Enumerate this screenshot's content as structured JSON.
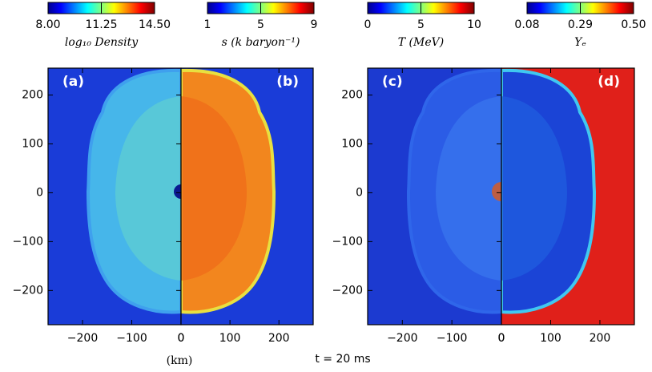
{
  "chart_data": [
    {
      "type": "heatmap",
      "label": "(a)",
      "colorbar": {
        "label": "log₁₀ Density",
        "lim": [
          8,
          14.5
        ],
        "ticks": [
          {
            "value": 8,
            "label": "8.00"
          },
          {
            "value": 11.25,
            "label": "11.25"
          },
          {
            "value": 14.5,
            "label": "14.50"
          }
        ]
      },
      "xlim": [
        -270,
        0
      ],
      "xticks": [
        {
          "value": -200,
          "label": "−200"
        },
        {
          "value": -100,
          "label": "−100"
        },
        0
      ],
      "ylim": [
        -270,
        255
      ],
      "yticks": [
        {
          "value": -200,
          "label": "−200"
        },
        {
          "value": -100,
          "label": "−100"
        },
        0,
        100,
        200
      ],
      "xlabel": "(km)"
    },
    {
      "type": "heatmap",
      "label": "(b)",
      "colorbar": {
        "label": "s (k baryon⁻¹)",
        "lim": [
          1,
          9
        ],
        "ticks": [
          1,
          5,
          9
        ]
      },
      "xlim": [
        0,
        270
      ],
      "xticks": [
        0,
        100,
        200
      ],
      "ylim": [
        -270,
        255
      ]
    },
    {
      "type": "heatmap",
      "label": "(c)",
      "colorbar": {
        "label": "T (MeV)",
        "lim": [
          0,
          10
        ],
        "ticks": [
          0,
          5,
          10
        ]
      },
      "xlim": [
        -270,
        0
      ],
      "xticks": [
        {
          "value": -200,
          "label": "−200"
        },
        {
          "value": -100,
          "label": "−100"
        },
        0
      ],
      "ylim": [
        -270,
        255
      ],
      "yticks": [
        {
          "value": -200,
          "label": "−200"
        },
        {
          "value": -100,
          "label": "−100"
        },
        0,
        100,
        200
      ]
    },
    {
      "type": "heatmap",
      "label": "(d)",
      "colorbar": {
        "label": "Yₑ",
        "lim": [
          0.08,
          0.5
        ],
        "ticks": [
          0.08,
          0.29,
          {
            "value": 0.5,
            "label": "0.50"
          }
        ]
      },
      "xlim": [
        0,
        270
      ],
      "xticks": [
        0,
        100,
        200
      ],
      "ylim": [
        -270,
        255
      ]
    }
  ],
  "caption": "t = 20 ms"
}
